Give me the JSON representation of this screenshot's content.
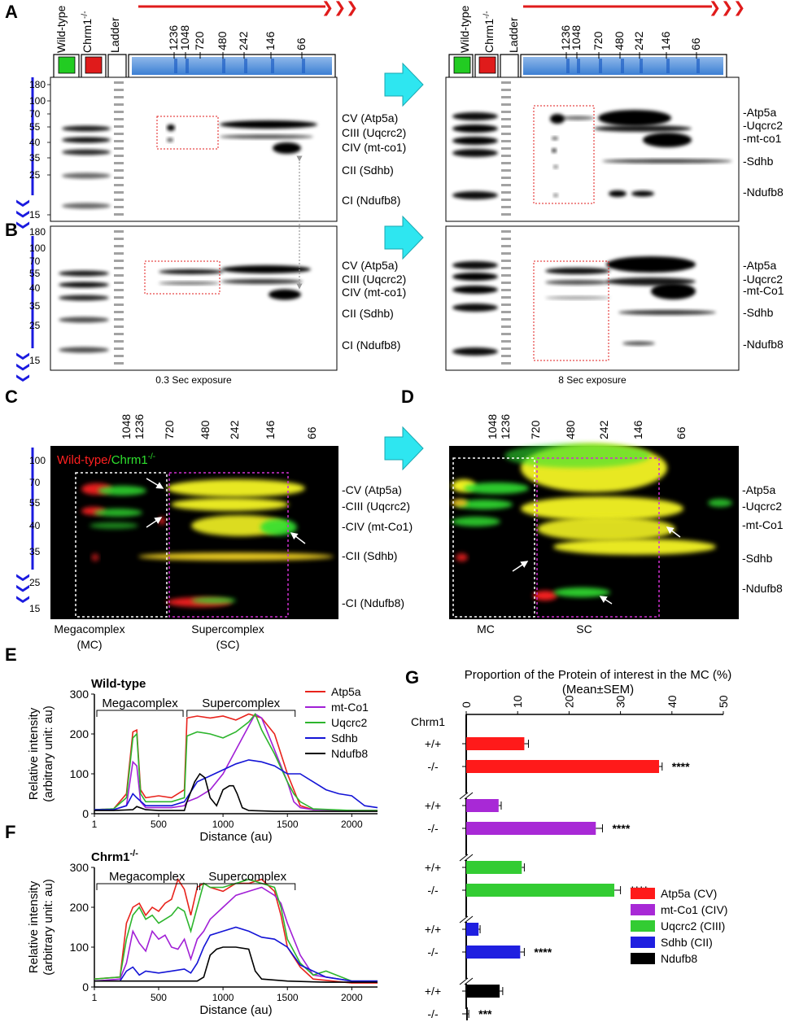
{
  "panel_letters": [
    "A",
    "B",
    "C",
    "D",
    "E",
    "F",
    "G"
  ],
  "blot_header": {
    "lanes": {
      "wt": "Wild-type",
      "ko_base": "Chrm1",
      "ko_sup": "-/-",
      "ladder": "Ladder"
    },
    "sizes_A": [
      "1236",
      "1048",
      "720",
      "480",
      "242",
      "146",
      "66"
    ],
    "sizes_C": [
      "1048",
      "1236",
      "720",
      "480",
      "242",
      "146",
      "66"
    ],
    "mw": [
      "180",
      "100",
      "70",
      "55",
      "40",
      "35",
      "25",
      "15"
    ],
    "mw_C": [
      "100",
      "70",
      "55",
      "40",
      "35",
      "25",
      "15"
    ]
  },
  "labels_left": [
    "CV (Atp5a)",
    "CIII (Uqcrc2)",
    "CIV (mt-co1)",
    "CII (Sdhb)",
    "CI (Ndufb8)"
  ],
  "labels_right_A": [
    "Atp5a",
    "Uqcrc2",
    "mt-co1",
    "Sdhb",
    "Ndufb8"
  ],
  "labels_left_C": [
    "CV (Atp5a)",
    "CIII (Uqcrc2)",
    "CIV (mt-Co1)",
    "CII (Sdhb)",
    "CI (Ndufb8)"
  ],
  "labels_right_B": [
    "Atp5a",
    "Uqcrc2",
    "mt-Co1",
    "Sdhb",
    "Ndufb8"
  ],
  "exposure": {
    "short": "0.3 Sec exposure",
    "long": "8 Sec exposure"
  },
  "fluor": {
    "wt": "Wild-type/",
    "ko": "Chrm1",
    "ko_sup": "-/-"
  },
  "regions": {
    "mc": "Megacomplex",
    "mc_abbr": "(MC)",
    "sc": "Supercomplex",
    "sc_abbr": "(SC)",
    "mc_short": "MC",
    "sc_short": "SC"
  },
  "chart_data": [
    {
      "type": "line",
      "panel": "E",
      "title": "Wild-type",
      "xlabel": "Distance (au)",
      "ylabel": "Relative intensity",
      "ylabel2": "(arbitrary unit: au)",
      "xticks": [
        "1",
        "500",
        "1000",
        "1500",
        "2000"
      ],
      "yticks": [
        "0",
        "100",
        "200",
        "300"
      ],
      "xlim": [
        1,
        2200
      ],
      "ylim": [
        0,
        300
      ],
      "annotations": [
        "Megacomplex",
        "Supercomplex"
      ],
      "series": [
        {
          "name": "Atp5a",
          "color": "#e8231c",
          "x": [
            1,
            150,
            250,
            300,
            330,
            360,
            400,
            500,
            600,
            700,
            720,
            800,
            900,
            1000,
            1100,
            1200,
            1300,
            1400,
            1500,
            1550,
            1600,
            1700,
            2000,
            2200
          ],
          "y": [
            10,
            12,
            50,
            205,
            210,
            60,
            40,
            45,
            40,
            60,
            240,
            245,
            240,
            245,
            235,
            250,
            240,
            200,
            100,
            60,
            20,
            10,
            8,
            8
          ]
        },
        {
          "name": "mt-Co1",
          "color": "#a11fd6",
          "x": [
            1,
            150,
            250,
            300,
            330,
            360,
            400,
            500,
            600,
            700,
            720,
            800,
            900,
            1000,
            1100,
            1200,
            1250,
            1300,
            1400,
            1500,
            1550,
            1600,
            1700,
            2000,
            2200
          ],
          "y": [
            10,
            10,
            20,
            130,
            120,
            30,
            15,
            15,
            15,
            20,
            30,
            40,
            60,
            100,
            160,
            220,
            250,
            240,
            160,
            80,
            30,
            15,
            10,
            8,
            8
          ]
        },
        {
          "name": "Uqcrc2",
          "color": "#2db52d",
          "x": [
            1,
            150,
            250,
            300,
            330,
            360,
            400,
            500,
            600,
            700,
            720,
            800,
            900,
            1000,
            1100,
            1200,
            1250,
            1300,
            1400,
            1500,
            1550,
            1600,
            1700,
            2000,
            2200
          ],
          "y": [
            10,
            12,
            40,
            190,
            200,
            50,
            30,
            30,
            30,
            40,
            195,
            205,
            200,
            190,
            205,
            230,
            250,
            210,
            150,
            80,
            50,
            30,
            12,
            8,
            8
          ]
        },
        {
          "name": "Sdhb",
          "color": "#1414d6",
          "x": [
            1,
            150,
            250,
            300,
            330,
            400,
            500,
            600,
            700,
            720,
            800,
            900,
            1000,
            1100,
            1200,
            1300,
            1400,
            1500,
            1600,
            1700,
            1800,
            1900,
            2000,
            2100,
            2200
          ],
          "y": [
            10,
            10,
            20,
            50,
            40,
            20,
            20,
            20,
            30,
            40,
            80,
            95,
            110,
            125,
            135,
            130,
            120,
            100,
            100,
            80,
            60,
            50,
            45,
            20,
            15
          ]
        },
        {
          "name": "Ndufb8",
          "color": "#000000",
          "x": [
            1,
            150,
            300,
            330,
            400,
            500,
            600,
            700,
            720,
            780,
            820,
            860,
            900,
            950,
            1000,
            1050,
            1080,
            1110,
            1150,
            1200,
            1400,
            1700,
            2000,
            2200
          ],
          "y": [
            8,
            8,
            10,
            18,
            10,
            8,
            8,
            8,
            30,
            80,
            100,
            90,
            40,
            20,
            60,
            70,
            70,
            50,
            15,
            8,
            6,
            6,
            6,
            6
          ]
        }
      ]
    },
    {
      "type": "line",
      "panel": "F",
      "title": "Chrm1",
      "title_sup": "-/-",
      "xlabel": "Distance (au)",
      "ylabel": "Relative intensity",
      "ylabel2": "(arbitrary unit: au)",
      "xticks": [
        "1",
        "500",
        "1000",
        "1500",
        "2000"
      ],
      "yticks": [
        "0",
        "100",
        "200",
        "300"
      ],
      "xlim": [
        1,
        2200
      ],
      "ylim": [
        0,
        300
      ],
      "annotations": [
        "Megacomplex",
        "Supercomplex"
      ],
      "series": [
        {
          "name": "Atp5a",
          "color": "#e8231c",
          "x": [
            1,
            200,
            250,
            300,
            350,
            400,
            450,
            500,
            550,
            600,
            650,
            700,
            750,
            800,
            850,
            900,
            1000,
            1100,
            1200,
            1300,
            1400,
            1450,
            1500,
            1600,
            1700,
            2000,
            2200
          ],
          "y": [
            20,
            25,
            160,
            200,
            210,
            180,
            200,
            190,
            210,
            220,
            270,
            245,
            180,
            250,
            260,
            250,
            240,
            260,
            260,
            270,
            240,
            180,
            100,
            50,
            20,
            10,
            10
          ]
        },
        {
          "name": "mt-Co1",
          "color": "#a11fd6",
          "x": [
            1,
            200,
            250,
            300,
            350,
            400,
            450,
            500,
            550,
            600,
            650,
            700,
            750,
            800,
            850,
            900,
            1000,
            1100,
            1200,
            1300,
            1400,
            1450,
            1500,
            1600,
            1700,
            2000,
            2200
          ],
          "y": [
            15,
            20,
            60,
            140,
            110,
            90,
            140,
            120,
            130,
            100,
            95,
            120,
            70,
            120,
            140,
            170,
            200,
            230,
            240,
            250,
            230,
            210,
            160,
            80,
            30,
            15,
            15
          ]
        },
        {
          "name": "Uqcrc2",
          "color": "#2db52d",
          "x": [
            1,
            200,
            250,
            300,
            350,
            400,
            450,
            500,
            550,
            600,
            650,
            700,
            750,
            800,
            850,
            900,
            1000,
            1100,
            1200,
            1300,
            1400,
            1450,
            1500,
            1600,
            1700,
            1800,
            2000,
            2200
          ],
          "y": [
            20,
            25,
            120,
            180,
            200,
            170,
            180,
            160,
            170,
            180,
            200,
            190,
            140,
            200,
            260,
            250,
            250,
            260,
            270,
            260,
            250,
            200,
            120,
            60,
            30,
            40,
            15,
            15
          ]
        },
        {
          "name": "Sdhb",
          "color": "#1414d6",
          "x": [
            1,
            200,
            250,
            300,
            350,
            400,
            500,
            600,
            700,
            750,
            800,
            850,
            900,
            1000,
            1100,
            1200,
            1300,
            1400,
            1500,
            1600,
            1800,
            2000,
            2200
          ],
          "y": [
            15,
            15,
            40,
            50,
            30,
            40,
            35,
            40,
            45,
            35,
            60,
            100,
            130,
            140,
            150,
            140,
            125,
            120,
            100,
            55,
            25,
            15,
            15
          ]
        },
        {
          "name": "Ndufb8",
          "color": "#000000",
          "x": [
            1,
            200,
            300,
            400,
            500,
            600,
            700,
            800,
            850,
            900,
            950,
            1000,
            1100,
            1200,
            1250,
            1300,
            1500,
            1800,
            2200
          ],
          "y": [
            15,
            15,
            15,
            15,
            15,
            15,
            15,
            15,
            25,
            80,
            95,
            100,
            100,
            95,
            40,
            20,
            15,
            12,
            12
          ]
        }
      ]
    },
    {
      "type": "bar",
      "panel": "G",
      "orientation": "horizontal",
      "title": "Proportion of the Protein of interest in the MC (%)",
      "subtitle": "(Mean±SEM)",
      "group_label": "Chrm1",
      "xticks": [
        "0",
        "10",
        "20",
        "30",
        "40",
        "50"
      ],
      "xlim": [
        0,
        50
      ],
      "genotypes": [
        "+/+",
        "-/-"
      ],
      "series": [
        {
          "name": "Atp5a (CV)",
          "color": "#ff1a1a",
          "values": [
            11.3,
            37.5
          ],
          "sem": [
            0.8,
            0.6
          ],
          "sig": "****"
        },
        {
          "name": "mt-Co1 (CIV)",
          "color": "#a829d6",
          "values": [
            6.3,
            25.2
          ],
          "sem": [
            0.5,
            1.3
          ],
          "sig": "****"
        },
        {
          "name": "Uqcrc2 (CIII)",
          "color": "#33cc33",
          "values": [
            10.8,
            28.8
          ],
          "sem": [
            0.5,
            1.2
          ],
          "sig": "****"
        },
        {
          "name": "Sdhb (CII)",
          "color": "#1f1fe0",
          "values": [
            2.4,
            10.5
          ],
          "sem": [
            0.3,
            0.8
          ],
          "sig": "****"
        },
        {
          "name": "Ndufb8",
          "color": "#000000",
          "values": [
            6.5,
            0.3
          ],
          "sem": [
            0.6,
            0.2
          ],
          "sig": "***"
        }
      ]
    }
  ]
}
